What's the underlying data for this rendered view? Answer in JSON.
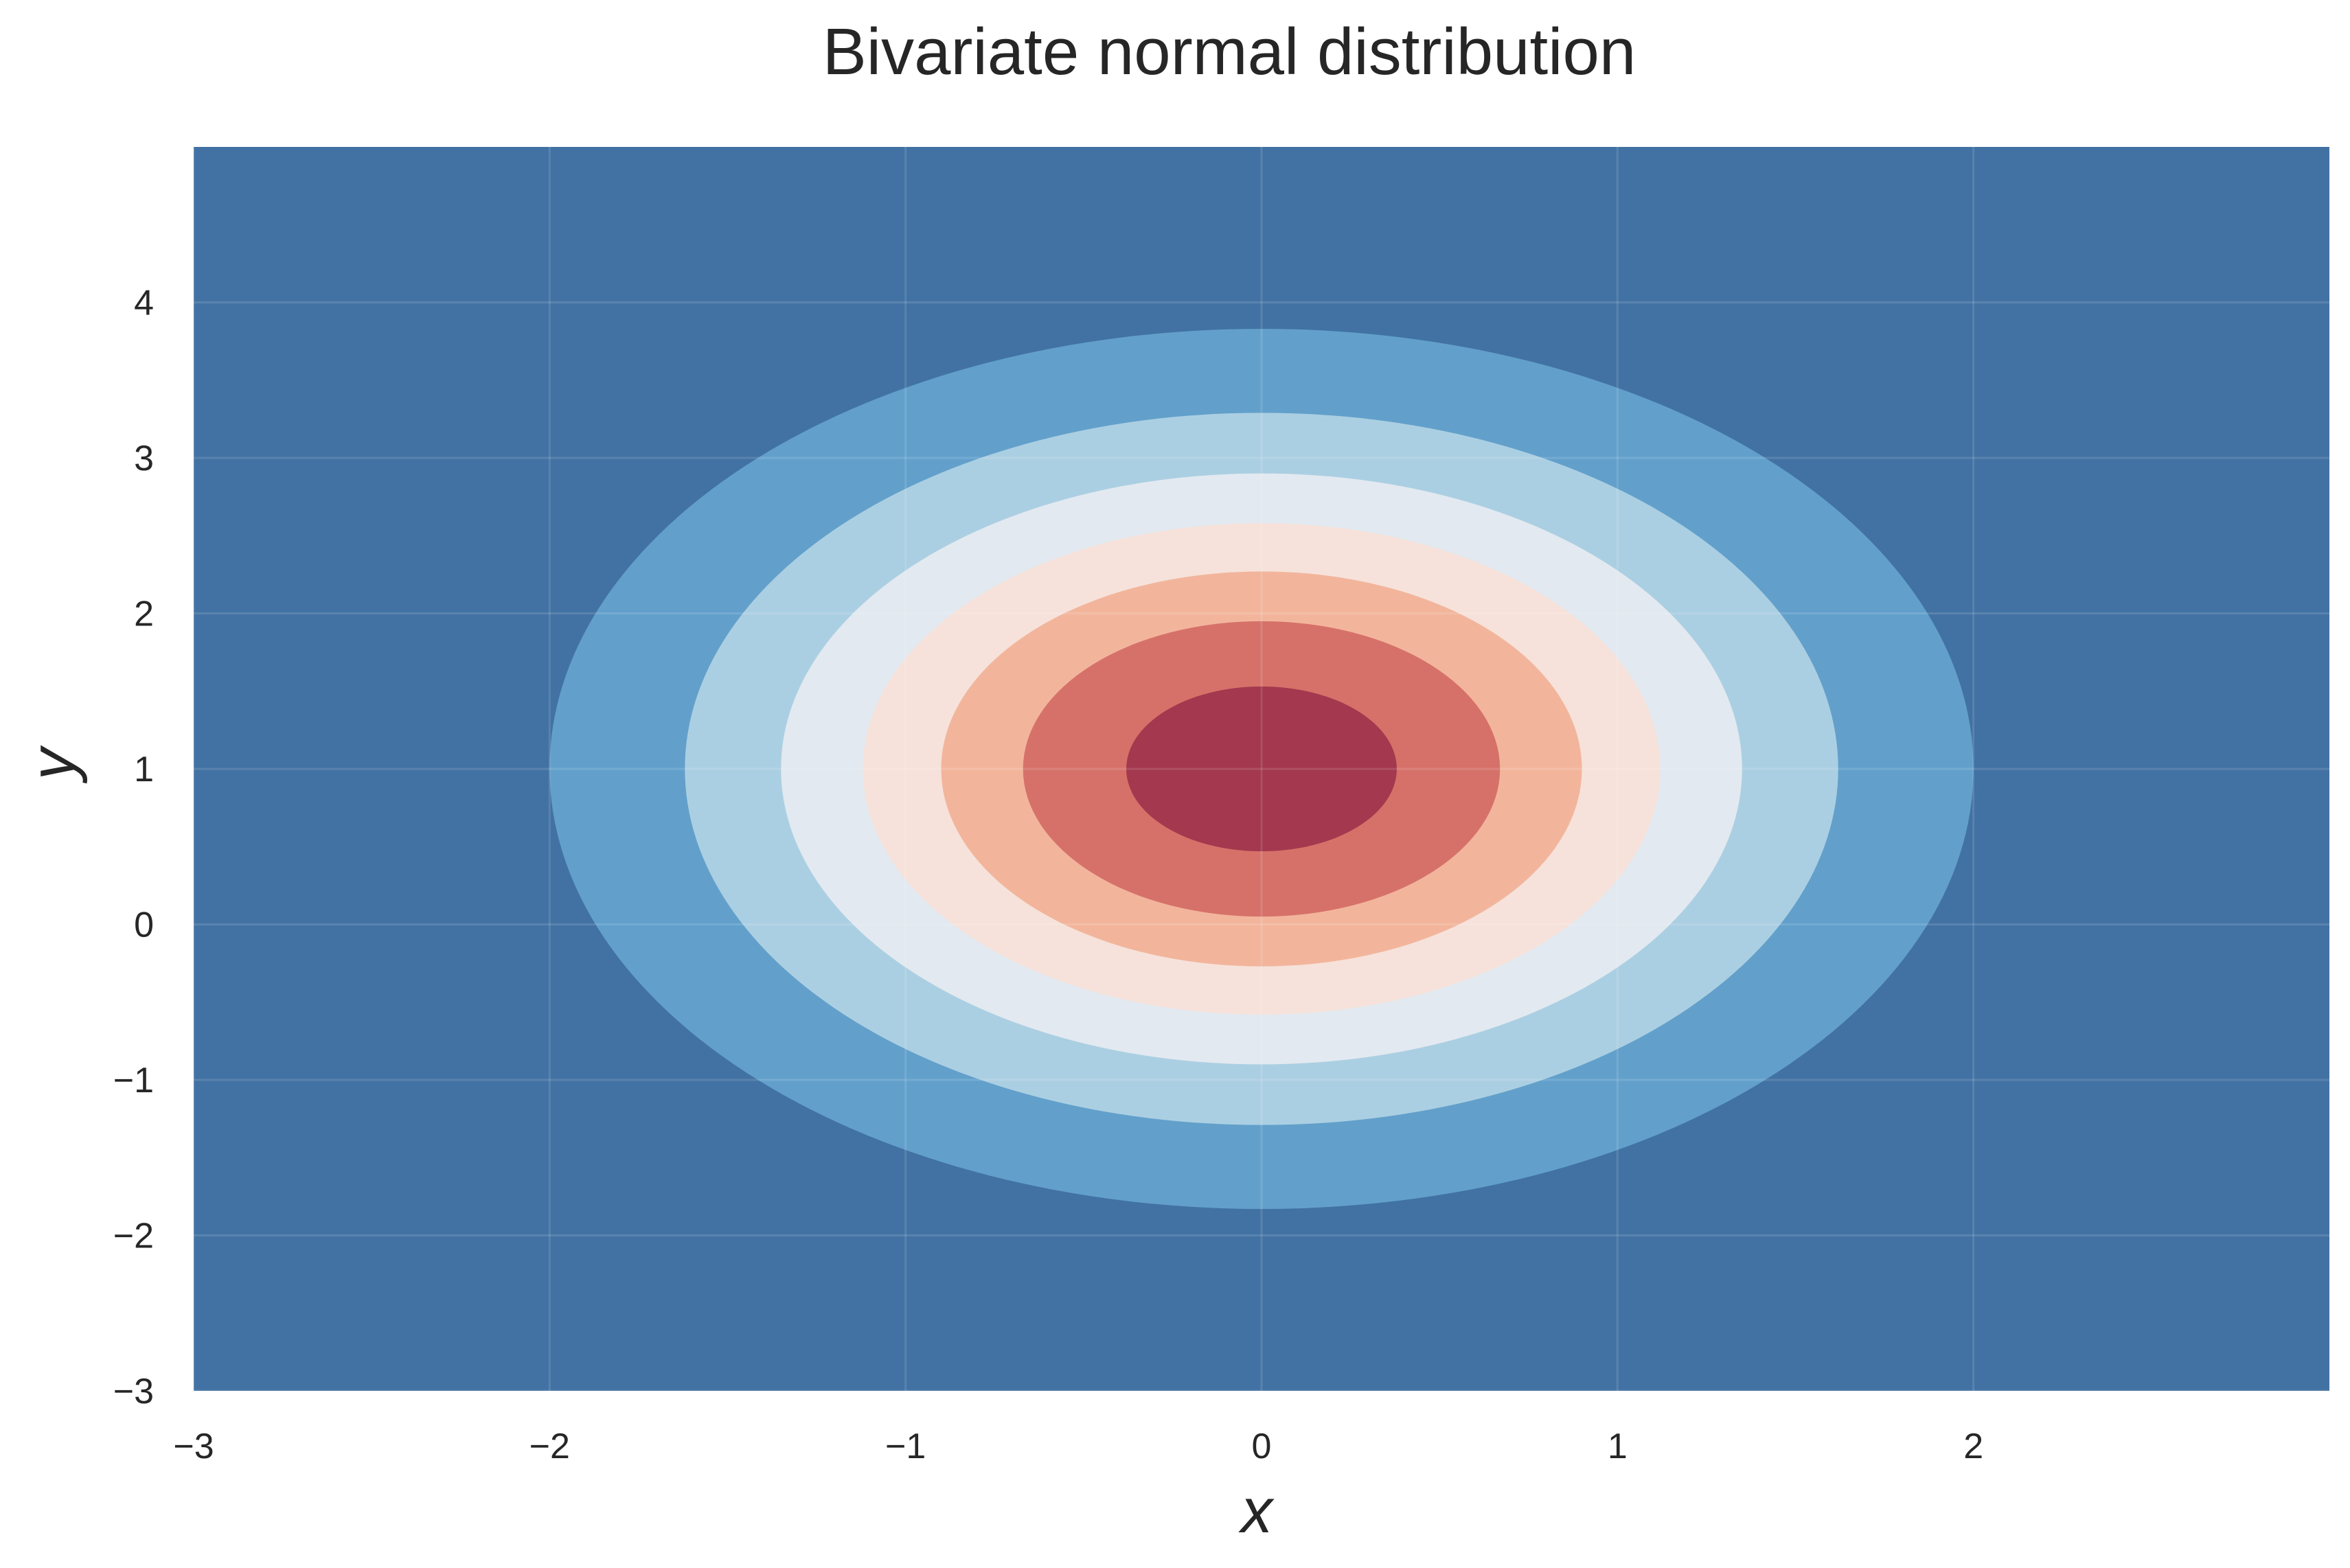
{
  "chart_data": {
    "type": "contour",
    "title": "Bivariate normal distribution",
    "xlabel": "x",
    "ylabel": "y",
    "xlim": [
      -3,
      3
    ],
    "ylim": [
      -3,
      5
    ],
    "xticks": [
      -3,
      -2,
      -1,
      0,
      1,
      2
    ],
    "yticks": [
      -3,
      -2,
      -1,
      0,
      1,
      2,
      3,
      4
    ],
    "xtick_labels": [
      "−3",
      "−2",
      "−1",
      "0",
      "1",
      "2"
    ],
    "ytick_labels": [
      "−3",
      "−2",
      "−1",
      "0",
      "1",
      "2",
      "3",
      "4"
    ],
    "grid": true,
    "center": [
      0,
      1
    ],
    "colormap": "RdBu_r",
    "background_color": "#4272a3",
    "contours": [
      {
        "level": 1,
        "x_half_width": 2.0,
        "y_half_height": 2.83,
        "color": "#62a0cb"
      },
      {
        "level": 2,
        "x_half_width": 1.62,
        "y_half_height": 2.29,
        "color": "#abcfe2"
      },
      {
        "level": 3,
        "x_half_width": 1.35,
        "y_half_height": 1.9,
        "color": "#e2e9f0"
      },
      {
        "level": 4,
        "x_half_width": 1.12,
        "y_half_height": 1.58,
        "color": "#f6e2da"
      },
      {
        "level": 5,
        "x_half_width": 0.9,
        "y_half_height": 1.27,
        "color": "#f2b59c"
      },
      {
        "level": 6,
        "x_half_width": 0.67,
        "y_half_height": 0.95,
        "color": "#d6716a"
      },
      {
        "level": 7,
        "x_half_width": 0.38,
        "y_half_height": 0.53,
        "color": "#a3384e"
      }
    ]
  }
}
